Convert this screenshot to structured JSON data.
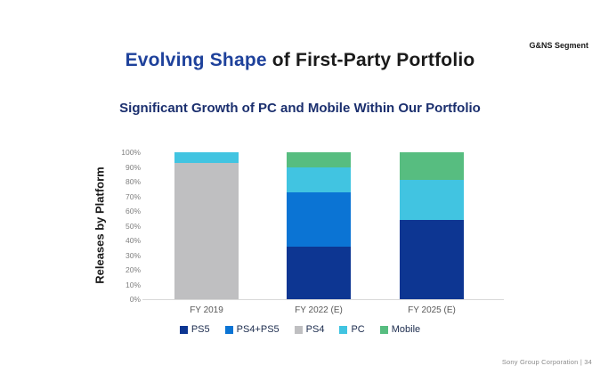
{
  "slide": {
    "segment_label": "G&NS Segment",
    "title": {
      "highlight": "Evolving Shape",
      "rest": " of First-Party Portfolio"
    },
    "subtitle": "Significant Growth of PC and Mobile Within Our Portfolio",
    "footer": "Sony Group Corporation  |  34"
  },
  "chart_data": {
    "type": "bar",
    "stacked": true,
    "title": "Significant Growth of PC and Mobile Within Our Portfolio",
    "ylabel": "Releases by Platform",
    "xlabel": "",
    "categories": [
      "FY 2019",
      "FY 2022 (E)",
      "FY 2025 (E)"
    ],
    "series": [
      {
        "name": "PS5",
        "color": "#0d3692",
        "values": [
          0,
          36,
          54
        ]
      },
      {
        "name": "PS4+PS5",
        "color": "#0b74d4",
        "values": [
          0,
          37,
          0
        ]
      },
      {
        "name": "PS4",
        "color": "#bfbfc1",
        "values": [
          93,
          0,
          0
        ]
      },
      {
        "name": "PC",
        "color": "#41c4e1",
        "values": [
          7,
          17,
          27
        ]
      },
      {
        "name": "Mobile",
        "color": "#57bd80",
        "values": [
          0,
          10,
          19
        ]
      }
    ],
    "ylim": [
      0,
      100
    ],
    "ytick_step": 10,
    "ytick_suffix": "%",
    "grid": false,
    "legend_position": "bottom"
  }
}
